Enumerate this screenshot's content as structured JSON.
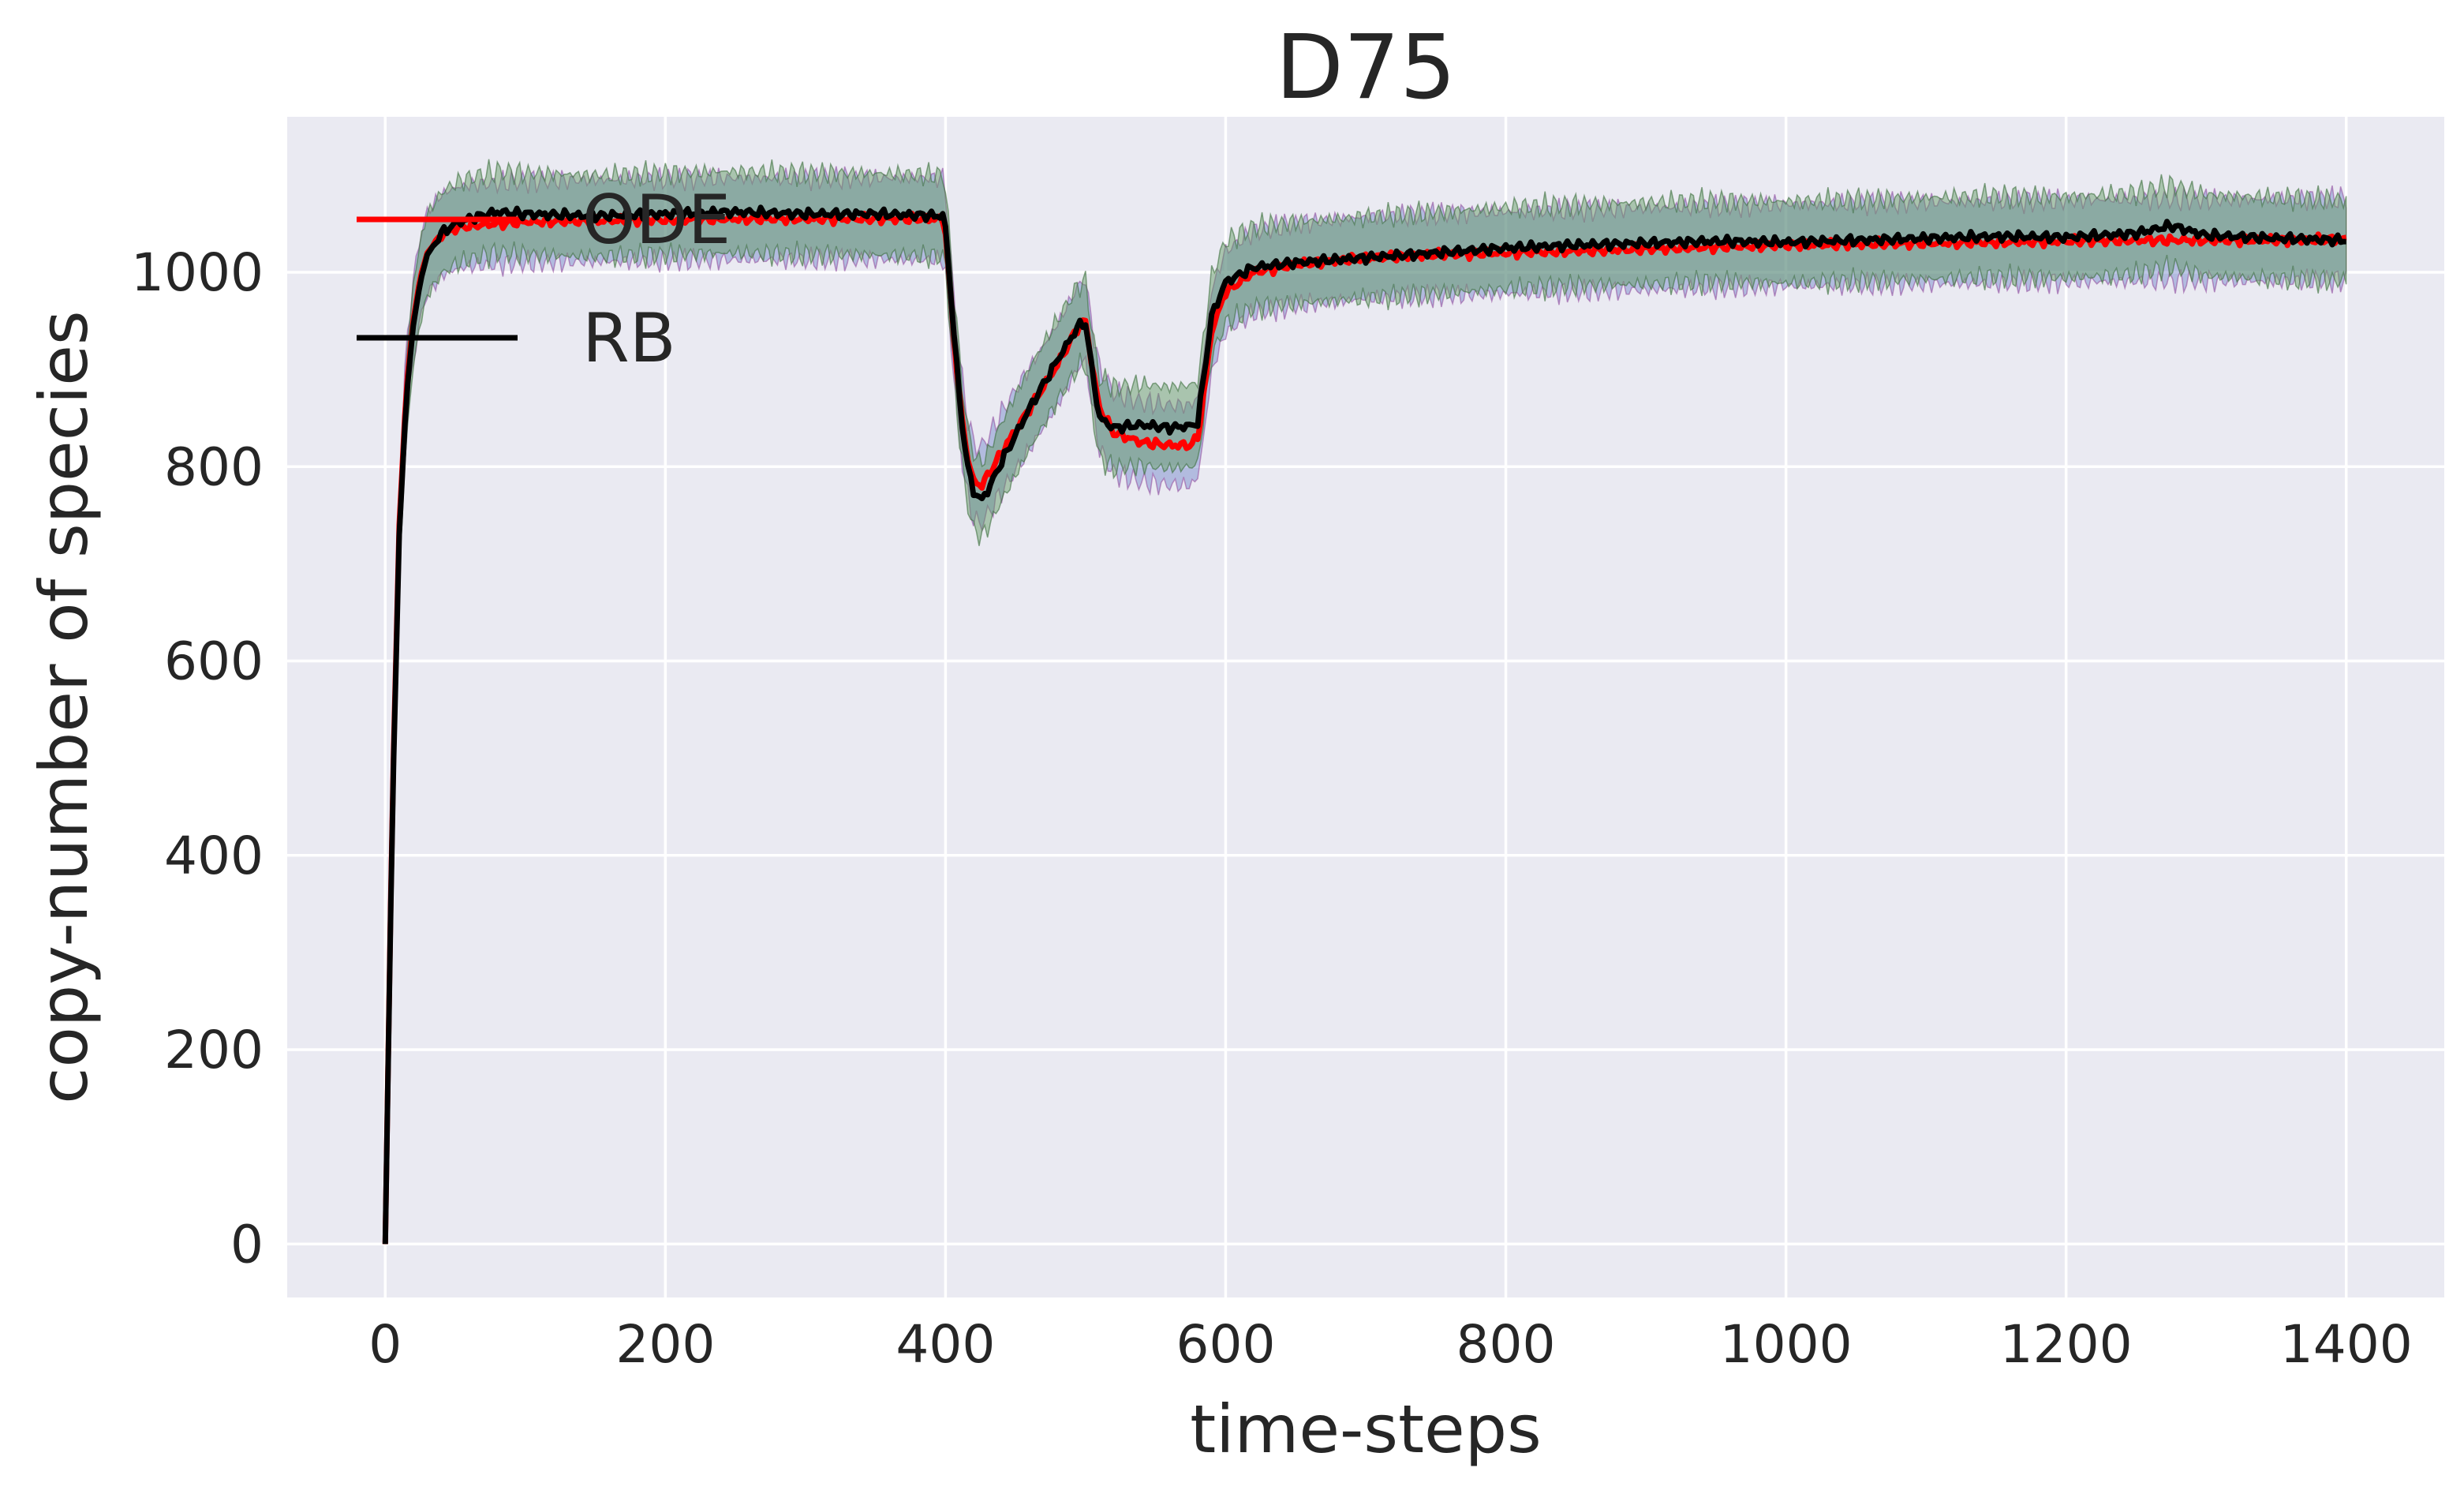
{
  "chart_data": {
    "type": "line",
    "title": "D75",
    "xlabel": "time-steps",
    "ylabel": "copy-number of species",
    "xlim": [
      -70,
      1470
    ],
    "ylim": [
      -55,
      1160
    ],
    "xticks": [
      0,
      200,
      400,
      600,
      800,
      1000,
      1200,
      1400
    ],
    "yticks": [
      0,
      200,
      400,
      600,
      800,
      1000
    ],
    "grid": true,
    "legend_position": "top-left",
    "background": "#eaeaf2",
    "series": [
      {
        "name": "ODE",
        "color": "#ff0000",
        "x": [
          0,
          5,
          10,
          15,
          20,
          25,
          30,
          40,
          50,
          60,
          80,
          100,
          150,
          200,
          250,
          300,
          350,
          399,
          400,
          405,
          410,
          415,
          420,
          425,
          430,
          440,
          460,
          480,
          495,
          500,
          505,
          510,
          520,
          540,
          560,
          575,
          580,
          585,
          590,
          600,
          620,
          650,
          700,
          750,
          800,
          850,
          900,
          950,
          1000,
          1050,
          1100,
          1150,
          1200,
          1250,
          1300,
          1350,
          1400
        ],
        "y": [
          0,
          450,
          740,
          880,
          950,
          995,
          1020,
          1038,
          1045,
          1048,
          1050,
          1052,
          1053,
          1054,
          1055,
          1055,
          1055,
          1055,
          1040,
          950,
          870,
          815,
          785,
          780,
          790,
          815,
          860,
          905,
          945,
          950,
          900,
          860,
          835,
          825,
          822,
          822,
          830,
          880,
          940,
          980,
          1000,
          1008,
          1015,
          1018,
          1020,
          1022,
          1024,
          1026,
          1028,
          1029,
          1030,
          1031,
          1032,
          1033,
          1033,
          1033,
          1034
        ]
      },
      {
        "name": "RB",
        "color": "#000000",
        "x": [
          0,
          5,
          10,
          15,
          20,
          25,
          30,
          40,
          50,
          60,
          80,
          100,
          150,
          200,
          250,
          300,
          350,
          399,
          400,
          405,
          410,
          415,
          420,
          425,
          430,
          440,
          460,
          480,
          495,
          500,
          505,
          510,
          520,
          540,
          560,
          575,
          580,
          585,
          590,
          600,
          620,
          650,
          700,
          750,
          800,
          850,
          900,
          950,
          1000,
          1050,
          1100,
          1150,
          1200,
          1250,
          1275,
          1300,
          1350,
          1400
        ],
        "y": [
          0,
          440,
          730,
          870,
          945,
          990,
          1018,
          1040,
          1050,
          1055,
          1062,
          1060,
          1058,
          1060,
          1062,
          1060,
          1060,
          1058,
          1045,
          955,
          870,
          805,
          775,
          765,
          775,
          805,
          860,
          910,
          945,
          948,
          895,
          850,
          840,
          843,
          840,
          842,
          845,
          900,
          955,
          990,
          1005,
          1010,
          1015,
          1020,
          1025,
          1028,
          1030,
          1032,
          1031,
          1033,
          1035,
          1037,
          1036,
          1040,
          1048,
          1038,
          1035,
          1033
        ]
      }
    ]
  }
}
